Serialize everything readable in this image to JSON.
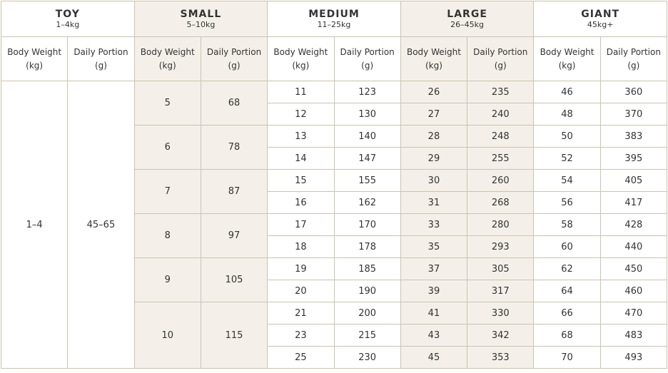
{
  "groups": [
    {
      "title": "TOY",
      "range": "1–4kg",
      "col_headers": [
        {
          "label": "Body Weight",
          "unit": "(kg)"
        },
        {
          "label": "Daily Portion",
          "unit": "(g)"
        }
      ],
      "rows": [
        {
          "weight": "1–4",
          "portion": "45–65"
        }
      ]
    },
    {
      "title": "SMALL",
      "range": "5–10kg",
      "col_headers": [
        {
          "label": "Body Weight",
          "unit": "(kg)"
        },
        {
          "label": "Daily Portion",
          "unit": "(g)"
        }
      ],
      "rows": [
        {
          "weight": 5,
          "portion": 68
        },
        {
          "weight": 6,
          "portion": 78
        },
        {
          "weight": 7,
          "portion": 87
        },
        {
          "weight": 8,
          "portion": 97
        },
        {
          "weight": 9,
          "portion": 105
        },
        {
          "weight": 10,
          "portion": 115
        }
      ]
    },
    {
      "title": "MEDIUM",
      "range": "11–25kg",
      "col_headers": [
        {
          "label": "Body Weight",
          "unit": "(kg)"
        },
        {
          "label": "Daily Portion",
          "unit": "(g)"
        }
      ],
      "rows": [
        {
          "weight": 11,
          "portion": 123
        },
        {
          "weight": 12,
          "portion": 130
        },
        {
          "weight": 13,
          "portion": 140
        },
        {
          "weight": 14,
          "portion": 147
        },
        {
          "weight": 15,
          "portion": 155
        },
        {
          "weight": 16,
          "portion": 162
        },
        {
          "weight": 17,
          "portion": 170
        },
        {
          "weight": 18,
          "portion": 178
        },
        {
          "weight": 19,
          "portion": 185
        },
        {
          "weight": 20,
          "portion": 190
        },
        {
          "weight": 21,
          "portion": 200
        },
        {
          "weight": 23,
          "portion": 215
        },
        {
          "weight": 25,
          "portion": 230
        }
      ]
    },
    {
      "title": "LARGE",
      "range": "26–45kg",
      "col_headers": [
        {
          "label": "Body Weight",
          "unit": "(kg)"
        },
        {
          "label": "Daily Portion",
          "unit": "(g)"
        }
      ],
      "rows": [
        {
          "weight": 26,
          "portion": 235
        },
        {
          "weight": 27,
          "portion": 240
        },
        {
          "weight": 28,
          "portion": 248
        },
        {
          "weight": 29,
          "portion": 255
        },
        {
          "weight": 30,
          "portion": 260
        },
        {
          "weight": 31,
          "portion": 268
        },
        {
          "weight": 33,
          "portion": 280
        },
        {
          "weight": 35,
          "portion": 293
        },
        {
          "weight": 37,
          "portion": 305
        },
        {
          "weight": 39,
          "portion": 317
        },
        {
          "weight": 41,
          "portion": 330
        },
        {
          "weight": 43,
          "portion": 342
        },
        {
          "weight": 45,
          "portion": 353
        }
      ]
    },
    {
      "title": "GIANT",
      "range": "45kg+",
      "col_headers": [
        {
          "label": "Body Weight",
          "unit": "(kg)"
        },
        {
          "label": "Daily Portion",
          "unit": "(g)"
        }
      ],
      "rows": [
        {
          "weight": 46,
          "portion": 360
        },
        {
          "weight": 48,
          "portion": 370
        },
        {
          "weight": 50,
          "portion": 383
        },
        {
          "weight": 52,
          "portion": 395
        },
        {
          "weight": 54,
          "portion": 405
        },
        {
          "weight": 56,
          "portion": 417
        },
        {
          "weight": 58,
          "portion": 428
        },
        {
          "weight": 60,
          "portion": 440
        },
        {
          "weight": 62,
          "portion": 450
        },
        {
          "weight": 64,
          "portion": 460
        },
        {
          "weight": 66,
          "portion": 470
        },
        {
          "weight": 68,
          "portion": 483
        },
        {
          "weight": 70,
          "portion": 493
        }
      ]
    }
  ]
}
